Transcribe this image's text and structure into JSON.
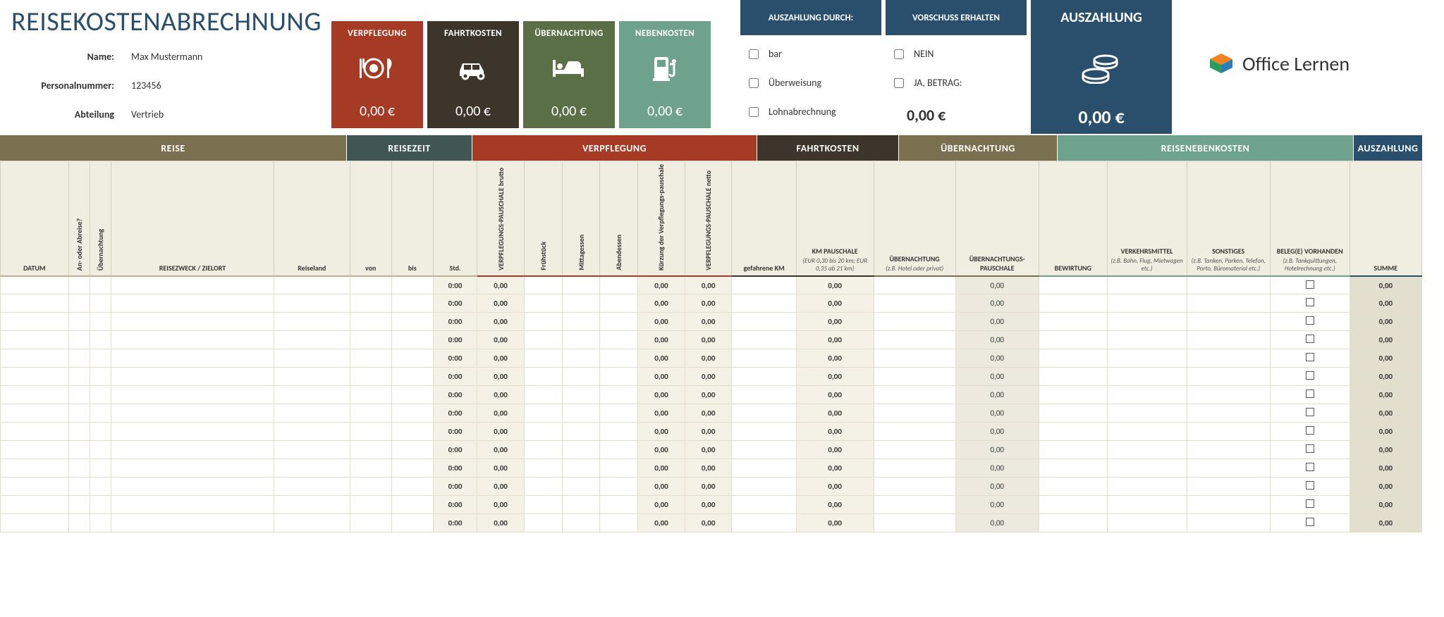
{
  "title": "REISEKOSTENABRECHNUNG",
  "info": {
    "name_label": "Name:",
    "name_value": "Max Mustermann",
    "pers_label": "Personalnummer:",
    "pers_value": "123456",
    "abt_label": "Abteilung",
    "abt_value": "Vertrieb"
  },
  "tiles": {
    "verpflegung": {
      "label": "VERPFLEGUNG",
      "amount": "0,00 €",
      "bg": "#a63b25"
    },
    "fahrtkosten": {
      "label": "FAHRTKOSTEN",
      "amount": "0,00 €",
      "bg": "#3d342c"
    },
    "uebernachtung": {
      "label": "ÜBERNACHTUNG",
      "amount": "0,00 €",
      "bg": "#5b6f47"
    },
    "nebenkosten": {
      "label": "NEBENKOSTEN",
      "amount": "0,00 €",
      "bg": "#6fa28d"
    }
  },
  "pay": {
    "auszahlung_durch": {
      "head": "AUSZAHLUNG DURCH:",
      "opt1": "bar",
      "opt2": "Überweisung",
      "opt3": "Lohnabrechnung"
    },
    "vorschuss": {
      "head": "VORSCHUSS ERHALTEN",
      "opt1": "NEIN",
      "opt2": "JA, BETRAG:",
      "amount": "0,00 €"
    },
    "auszahlung": {
      "head": "AUSZAHLUNG",
      "amount": "0,00 €"
    }
  },
  "logo_text": "Office Lernen",
  "sections": {
    "reise": "REISE",
    "reisezeit": "REISEZEIT",
    "verpflegung": "VERPFLEGUNG",
    "fahrtkosten": "FAHRTKOSTEN",
    "uebernachtung": "ÜBERNACHTUNG",
    "nebenkosten": "REISENEBENKOSTEN",
    "auszahlung": "AUSZAHLUNG"
  },
  "columns": {
    "datum": "DATUM",
    "abreise": "An- oder Abreise?",
    "uebernachtung_flag": "Übernachtung",
    "zweck": "REISEZWECK / ZIELORT",
    "land": "Reiseland",
    "von": "von",
    "bis": "bis",
    "std": "Std.",
    "vp_brutto": "VERPFLEGUNGS-PAUSCHALE brutto",
    "fruehstueck": "Frühstück",
    "mittag": "Mittagessen",
    "abend": "Abendessen",
    "kuerzung": "Kürzung der Verpflegungs-pauschale",
    "vp_netto": "VERPFLEGUNGS-PAUSCHALE netto",
    "km": "gefahrene KM",
    "km_pausch_main": "KM PAUSCHALE",
    "km_pausch_sub": "(EUR 0,30 bis 20 km; EUR 0,35 ab 21 km)",
    "uebernachtung_main": "ÜBERNACHTUNG",
    "uebernachtung_sub": "(z.B. Hotel oder privat)",
    "ueb_pausch": "ÜBERNACHTUNGS-PAUSCHALE",
    "bewirtung": "BEWIRTUNG",
    "verkehr_main": "VERKEHRSMITTEL",
    "verkehr_sub": "(z.B. Bahn, Flug, Mietwagen etc.)",
    "sonst_main": "SONSTIGES",
    "sonst_sub": "(z.B. Tanken, Parken, Telefon, Porto, Büromaterial etc.)",
    "beleg_main": "BELEG(E) VORHANDEN",
    "beleg_sub": "(z.B. Tankquittungen, Hotelrechnung etc.)",
    "summe": "SUMME"
  },
  "row_defaults": {
    "std": "0:00",
    "zero": "0,00"
  },
  "row_count": 14,
  "colors": {
    "brand": "#2a4f6d",
    "verpflegung": "#a63b25",
    "fahrt": "#3d342c",
    "uebern": "#5b6f47",
    "neben": "#6fa28d",
    "reise": "#7a6f4e",
    "reisezeit": "#3f5654",
    "header_bg": "#f0ede1"
  }
}
